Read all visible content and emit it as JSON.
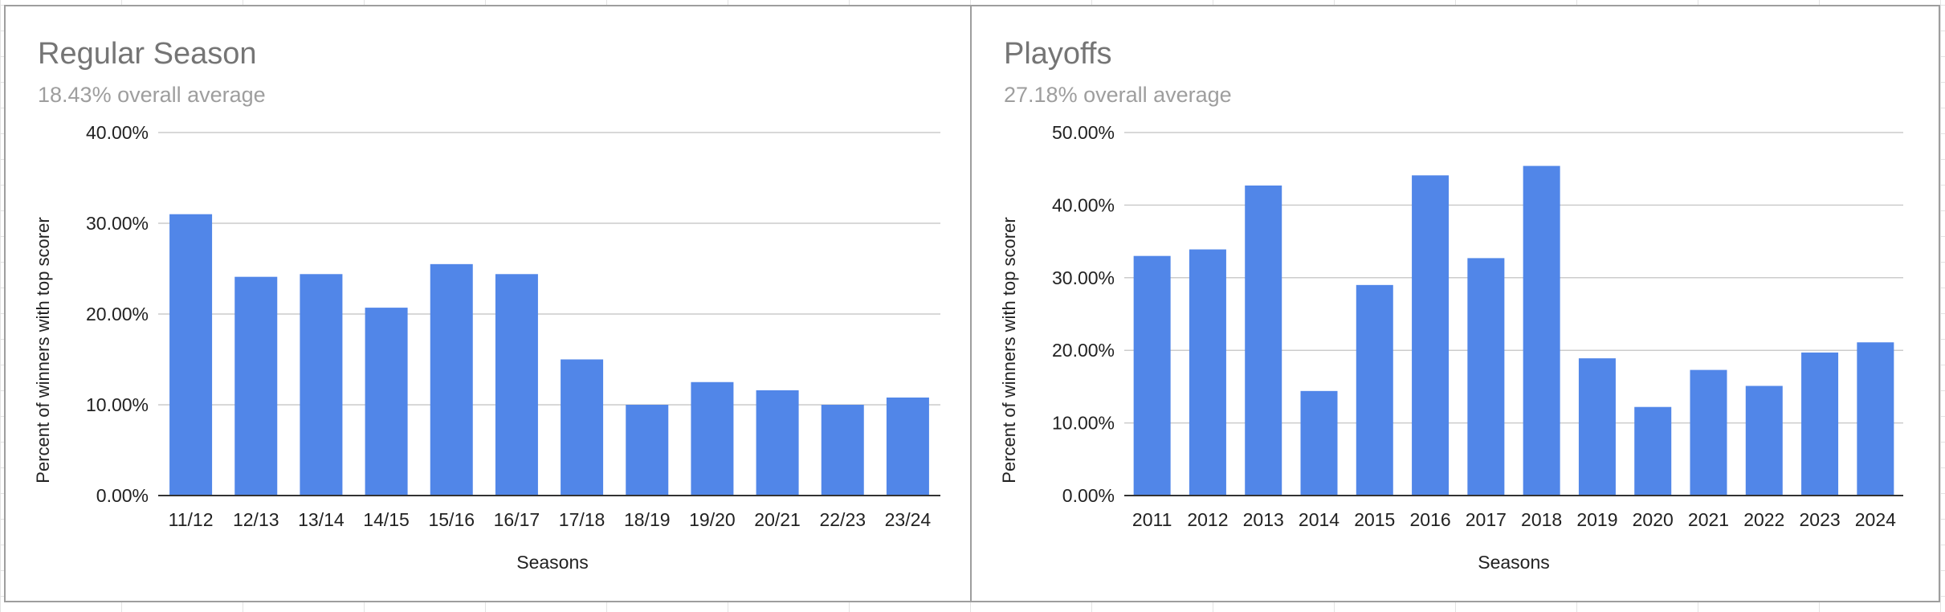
{
  "chart_data": [
    {
      "type": "bar",
      "title": "Regular Season",
      "subtitle": "18.43% overall average",
      "xlabel": "Seasons",
      "ylabel": "Percent of winners with top scorer",
      "categories": [
        "11/12",
        "12/13",
        "13/14",
        "14/15",
        "15/16",
        "16/17",
        "17/18",
        "18/19",
        "19/20",
        "20/21",
        "22/23",
        "23/24"
      ],
      "values": [
        31.0,
        24.1,
        24.4,
        20.7,
        25.5,
        24.4,
        15.0,
        10.0,
        12.5,
        11.6,
        10.0,
        10.8
      ],
      "ylim": [
        0,
        40
      ],
      "yticks": [
        {
          "value": 0,
          "label": "0.00%"
        },
        {
          "value": 10,
          "label": "10.00%"
        },
        {
          "value": 20,
          "label": "20.00%"
        },
        {
          "value": 30,
          "label": "30.00%"
        },
        {
          "value": 40,
          "label": "40.00%"
        }
      ],
      "bar_color": "#5186e8",
      "grid": true,
      "legend": "none"
    },
    {
      "type": "bar",
      "title": "Playoffs",
      "subtitle": "27.18% overall average",
      "xlabel": "Seasons",
      "ylabel": "Percent of winners with top scorer",
      "categories": [
        "2011",
        "2012",
        "2013",
        "2014",
        "2015",
        "2016",
        "2017",
        "2018",
        "2019",
        "2020",
        "2021",
        "2022",
        "2023",
        "2024"
      ],
      "values": [
        33.0,
        33.9,
        42.7,
        14.4,
        29.0,
        44.1,
        32.7,
        45.4,
        18.9,
        12.2,
        17.3,
        15.1,
        19.7,
        21.1
      ],
      "ylim": [
        0,
        50
      ],
      "yticks": [
        {
          "value": 0,
          "label": "0.00%"
        },
        {
          "value": 10,
          "label": "10.00%"
        },
        {
          "value": 20,
          "label": "20.00%"
        },
        {
          "value": 30,
          "label": "30.00%"
        },
        {
          "value": 40,
          "label": "40.00%"
        },
        {
          "value": 50,
          "label": "50.00%"
        }
      ],
      "bar_color": "#5186e8",
      "grid": true,
      "legend": "none"
    }
  ]
}
